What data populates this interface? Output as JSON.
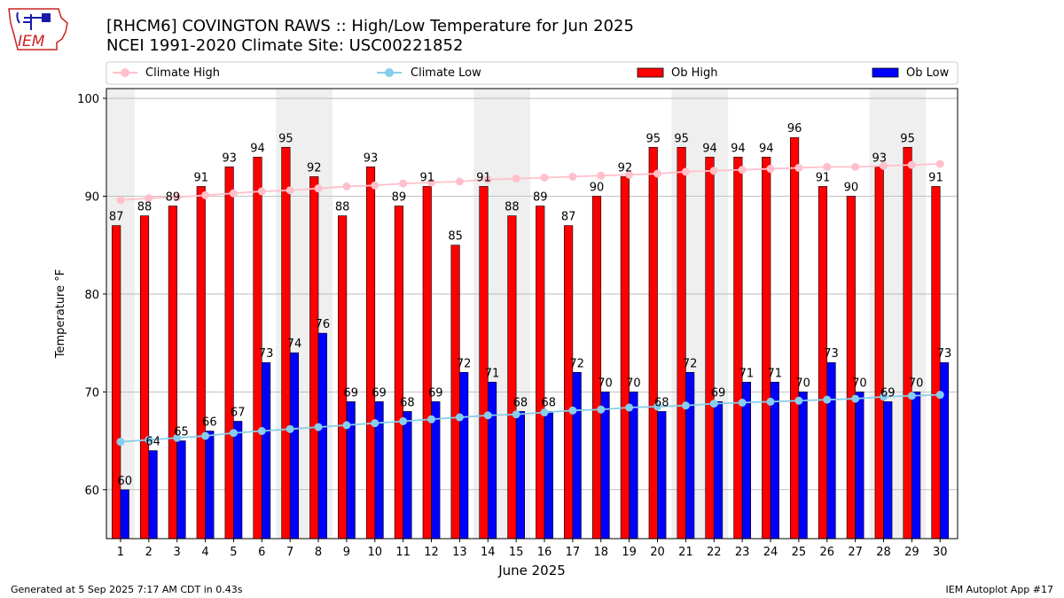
{
  "logo": {
    "text": "IEM"
  },
  "titles": {
    "line1": "[RHCM6] COVINGTON RAWS :: High/Low Temperature for Jun 2025",
    "line2": "NCEI 1991-2020 Climate Site: USC00221852"
  },
  "legend": {
    "climate_high": "Climate High",
    "climate_low": "Climate Low",
    "ob_high": "Ob High",
    "ob_low": "Ob Low"
  },
  "footer": {
    "generated": "Generated at 5 Sep 2025 7:17 AM CDT in 0.43s",
    "app": "IEM Autoplot App #17"
  },
  "colors": {
    "ob_high": "#ff0000",
    "ob_low": "#0000ff",
    "climate_high": "#ffc0cb",
    "climate_low": "#87ceeb",
    "weekend_shade": "#efefef",
    "grid": "#b0b0b0"
  },
  "chart_data": {
    "type": "bar",
    "title": "[RHCM6] COVINGTON RAWS :: High/Low Temperature for Jun 2025",
    "subtitle": "NCEI 1991-2020 Climate Site: USC00221852",
    "xlabel": "June 2025",
    "ylabel": "Temperature °F",
    "ylim": [
      55,
      101
    ],
    "yticks": [
      60,
      70,
      80,
      90,
      100
    ],
    "grid": true,
    "legend_position": "top",
    "categories": [
      "1",
      "2",
      "3",
      "4",
      "5",
      "6",
      "7",
      "8",
      "9",
      "10",
      "11",
      "12",
      "13",
      "14",
      "15",
      "16",
      "17",
      "18",
      "19",
      "20",
      "21",
      "22",
      "23",
      "24",
      "25",
      "26",
      "27",
      "28",
      "29",
      "30"
    ],
    "shaded_days": [
      1,
      7,
      8,
      14,
      15,
      21,
      22,
      28,
      29
    ],
    "series": [
      {
        "name": "Ob High",
        "kind": "bar",
        "values": [
          87,
          88,
          89,
          91,
          93,
          94,
          95,
          92,
          88,
          93,
          89,
          91,
          85,
          91,
          88,
          89,
          87,
          90,
          92,
          95,
          95,
          94,
          94,
          94,
          96,
          91,
          90,
          93,
          95,
          91
        ]
      },
      {
        "name": "Ob Low",
        "kind": "bar",
        "values": [
          60,
          64,
          65,
          66,
          67,
          73,
          74,
          76,
          69,
          69,
          68,
          69,
          72,
          71,
          68,
          68,
          72,
          70,
          70,
          68,
          72,
          69,
          71,
          71,
          70,
          73,
          70,
          69,
          70,
          73
        ]
      },
      {
        "name": "Climate High",
        "kind": "line",
        "values": [
          89.6,
          89.8,
          89.9,
          90.1,
          90.3,
          90.5,
          90.6,
          90.8,
          91.0,
          91.1,
          91.3,
          91.4,
          91.5,
          91.7,
          91.8,
          91.9,
          92.0,
          92.1,
          92.2,
          92.3,
          92.5,
          92.6,
          92.7,
          92.8,
          92.9,
          93.0,
          93.0,
          93.1,
          93.2,
          93.3
        ]
      },
      {
        "name": "Climate Low",
        "kind": "line",
        "values": [
          64.9,
          65.1,
          65.3,
          65.5,
          65.8,
          66.0,
          66.2,
          66.4,
          66.6,
          66.8,
          67.0,
          67.2,
          67.4,
          67.6,
          67.7,
          67.9,
          68.1,
          68.2,
          68.4,
          68.5,
          68.6,
          68.8,
          68.9,
          69.0,
          69.1,
          69.2,
          69.3,
          69.5,
          69.6,
          69.7
        ]
      }
    ]
  }
}
